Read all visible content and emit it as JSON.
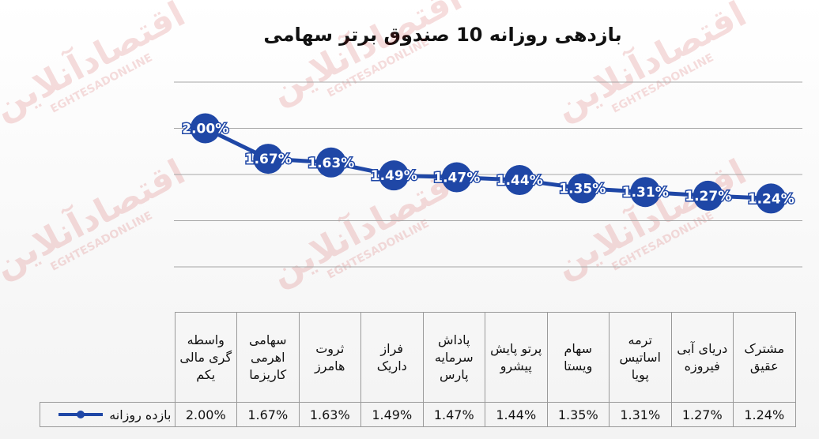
{
  "chart_data": {
    "type": "line",
    "title": "بازدهی روزانه 10 صندوق برتر سهامی",
    "watermark": "اقتصادآنلاین",
    "watermark_sub": "EGHTESADONLINE",
    "categories": [
      "واسطه گری مالی یکم",
      "سهامی اهرمی کاریزما",
      "ثروت هامرز",
      "فراز داریک",
      "پاداش سرمایه پارس",
      "پرتو پایش پیشرو",
      "سهام ویستا",
      "ترمه اساتیس پویا",
      "دریای آبی فیروزه",
      "مشترک عقیق"
    ],
    "series": [
      {
        "name": "بازده روزانه",
        "color": "#1f47a6",
        "values": [
          2.0,
          1.67,
          1.63,
          1.49,
          1.47,
          1.44,
          1.35,
          1.31,
          1.27,
          1.24
        ],
        "value_labels": [
          "2.00%",
          "1.67%",
          "1.63%",
          "1.49%",
          "1.47%",
          "1.44%",
          "1.35%",
          "1.31%",
          "1.27%",
          "1.24%"
        ]
      }
    ],
    "ylim": [
      0.5,
      2.5
    ],
    "yticks": [
      0.5,
      1,
      1.5,
      2,
      2.5
    ],
    "grid": true
  }
}
